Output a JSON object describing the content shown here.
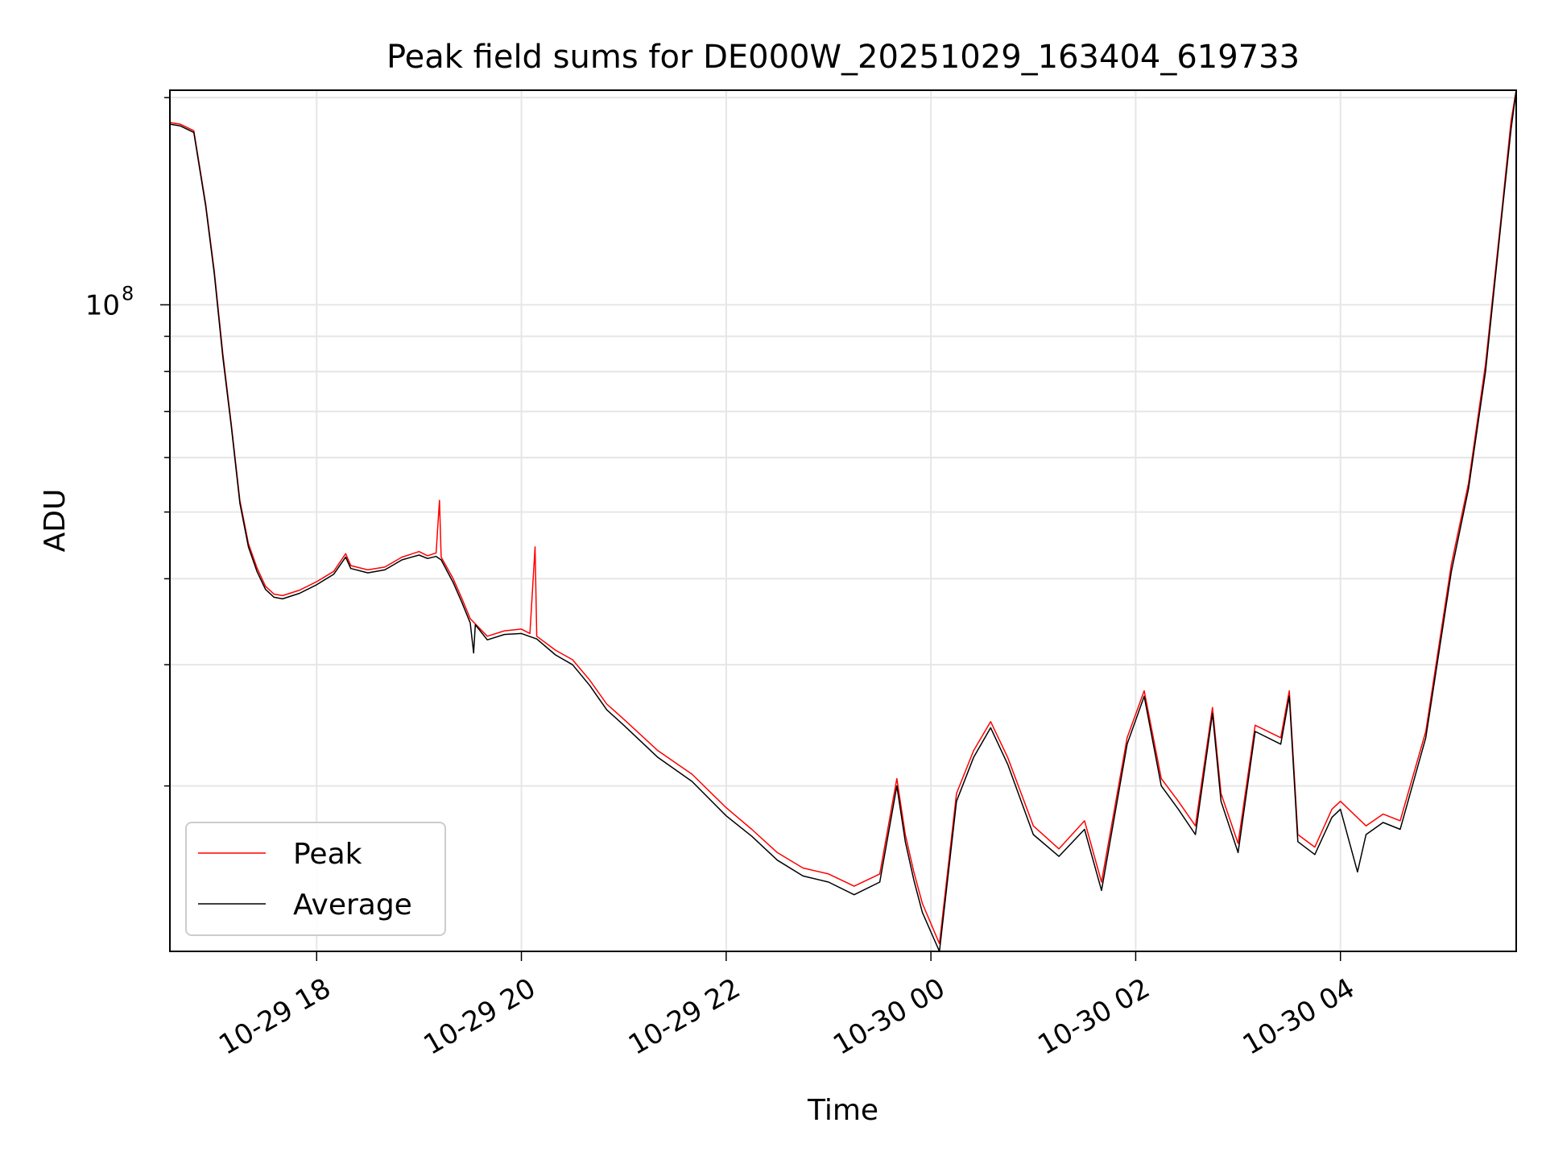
{
  "chart_data": {
    "type": "line",
    "title": "Peak field sums for DE000W_20251029_163404_619733",
    "xlabel": "Time",
    "ylabel": "ADU",
    "x_scale": "time",
    "y_scale": "log",
    "grid": true,
    "legend_position": "lower-left",
    "xlim": [
      "2025-10-29 16:34",
      "2025-10-30 05:43"
    ],
    "ylim": [
      11500000,
      205000000
    ],
    "x_ticks": [
      {
        "t": "2025-10-29 18:00",
        "label": "10-29 18"
      },
      {
        "t": "2025-10-29 20:00",
        "label": "10-29 20"
      },
      {
        "t": "2025-10-29 22:00",
        "label": "10-29 22"
      },
      {
        "t": "2025-10-30 00:00",
        "label": "10-30 00"
      },
      {
        "t": "2025-10-30 02:00",
        "label": "10-30 02"
      },
      {
        "t": "2025-10-30 04:00",
        "label": "10-30 04"
      }
    ],
    "y_ticks": [
      {
        "value": 100000000,
        "label": "10",
        "exp": "8"
      }
    ],
    "y_minor_ticks": [
      20000000,
      30000000,
      40000000,
      50000000,
      60000000,
      70000000,
      80000000,
      90000000,
      200000000
    ],
    "series": [
      {
        "name": "Peak",
        "color": "#ff0000",
        "points": [
          [
            "2025-10-29 16:34",
            184000000
          ],
          [
            "2025-10-29 16:40",
            183000000
          ],
          [
            "2025-10-29 16:48",
            179000000
          ],
          [
            "2025-10-29 16:55",
            140000000
          ],
          [
            "2025-10-29 17:00",
            112000000
          ],
          [
            "2025-10-29 17:05",
            85000000
          ],
          [
            "2025-10-29 17:10",
            67000000
          ],
          [
            "2025-10-29 17:15",
            52000000
          ],
          [
            "2025-10-29 17:20",
            45000000
          ],
          [
            "2025-10-29 17:25",
            41500000
          ],
          [
            "2025-10-29 17:30",
            39000000
          ],
          [
            "2025-10-29 17:35",
            38000000
          ],
          [
            "2025-10-29 17:40",
            37800000
          ],
          [
            "2025-10-29 17:50",
            38500000
          ],
          [
            "2025-10-29 18:00",
            39600000
          ],
          [
            "2025-10-29 18:10",
            41000000
          ],
          [
            "2025-10-29 18:17",
            43500000
          ],
          [
            "2025-10-29 18:20",
            41800000
          ],
          [
            "2025-10-29 18:30",
            41200000
          ],
          [
            "2025-10-29 18:40",
            41600000
          ],
          [
            "2025-10-29 18:50",
            43000000
          ],
          [
            "2025-10-29 19:00",
            43800000
          ],
          [
            "2025-10-29 19:05",
            43200000
          ],
          [
            "2025-10-29 19:10",
            43600000
          ],
          [
            "2025-10-29 19:12",
            52000000
          ],
          [
            "2025-10-29 19:13",
            43000000
          ],
          [
            "2025-10-29 19:20",
            40000000
          ],
          [
            "2025-10-29 19:25",
            37500000
          ],
          [
            "2025-10-29 19:30",
            35000000
          ],
          [
            "2025-10-29 19:40",
            33000000
          ],
          [
            "2025-10-29 19:50",
            33600000
          ],
          [
            "2025-10-29 20:00",
            33800000
          ],
          [
            "2025-10-29 20:05",
            33300000
          ],
          [
            "2025-10-29 20:08",
            44500000
          ],
          [
            "2025-10-29 20:09",
            33000000
          ],
          [
            "2025-10-29 20:20",
            31500000
          ],
          [
            "2025-10-29 20:30",
            30500000
          ],
          [
            "2025-10-29 20:40",
            28500000
          ],
          [
            "2025-10-29 20:50",
            26300000
          ],
          [
            "2025-10-29 21:00",
            25000000
          ],
          [
            "2025-10-29 21:20",
            22500000
          ],
          [
            "2025-10-29 21:40",
            20800000
          ],
          [
            "2025-10-29 22:00",
            18600000
          ],
          [
            "2025-10-29 22:15",
            17300000
          ],
          [
            "2025-10-29 22:30",
            16000000
          ],
          [
            "2025-10-29 22:45",
            15200000
          ],
          [
            "2025-10-29 23:00",
            14900000
          ],
          [
            "2025-10-29 23:15",
            14300000
          ],
          [
            "2025-10-29 23:30",
            14900000
          ],
          [
            "2025-10-29 23:40",
            20500000
          ],
          [
            "2025-10-29 23:45",
            17000000
          ],
          [
            "2025-10-29 23:50",
            15000000
          ],
          [
            "2025-10-29 23:55",
            13500000
          ],
          [
            "2025-10-30 00:05",
            11800000
          ],
          [
            "2025-10-30 00:15",
            19500000
          ],
          [
            "2025-10-30 00:25",
            22500000
          ],
          [
            "2025-10-30 00:35",
            24800000
          ],
          [
            "2025-10-30 00:45",
            22000000
          ],
          [
            "2025-10-30 01:00",
            17500000
          ],
          [
            "2025-10-30 01:15",
            16200000
          ],
          [
            "2025-10-30 01:30",
            17800000
          ],
          [
            "2025-10-30 01:40",
            14500000
          ],
          [
            "2025-10-30 01:55",
            23500000
          ],
          [
            "2025-10-30 02:05",
            27500000
          ],
          [
            "2025-10-30 02:15",
            20500000
          ],
          [
            "2025-10-30 02:25",
            19000000
          ],
          [
            "2025-10-30 02:35",
            17500000
          ],
          [
            "2025-10-30 02:45",
            26000000
          ],
          [
            "2025-10-30 02:50",
            19500000
          ],
          [
            "2025-10-30 03:00",
            16500000
          ],
          [
            "2025-10-30 03:10",
            24500000
          ],
          [
            "2025-10-30 03:25",
            23500000
          ],
          [
            "2025-10-30 03:30",
            27500000
          ],
          [
            "2025-10-30 03:35",
            17000000
          ],
          [
            "2025-10-30 03:45",
            16300000
          ],
          [
            "2025-10-30 03:55",
            18500000
          ],
          [
            "2025-10-30 04:00",
            19000000
          ],
          [
            "2025-10-30 04:15",
            17500000
          ],
          [
            "2025-10-30 04:25",
            18200000
          ],
          [
            "2025-10-30 04:35",
            17800000
          ],
          [
            "2025-10-30 04:50",
            24000000
          ],
          [
            "2025-10-30 05:05",
            42000000
          ],
          [
            "2025-10-30 05:15",
            55000000
          ],
          [
            "2025-10-30 05:25",
            82000000
          ],
          [
            "2025-10-30 05:35",
            140000000
          ],
          [
            "2025-10-30 05:40",
            185000000
          ],
          [
            "2025-10-30 05:43",
            205000000
          ]
        ]
      },
      {
        "name": "Average",
        "color": "#000000",
        "points": [
          [
            "2025-10-29 16:34",
            183000000
          ],
          [
            "2025-10-29 16:40",
            182000000
          ],
          [
            "2025-10-29 16:48",
            178000000
          ],
          [
            "2025-10-29 16:55",
            139000000
          ],
          [
            "2025-10-29 17:00",
            111000000
          ],
          [
            "2025-10-29 17:05",
            84000000
          ],
          [
            "2025-10-29 17:10",
            66500000
          ],
          [
            "2025-10-29 17:15",
            51500000
          ],
          [
            "2025-10-29 17:20",
            44500000
          ],
          [
            "2025-10-29 17:25",
            41000000
          ],
          [
            "2025-10-29 17:30",
            38600000
          ],
          [
            "2025-10-29 17:35",
            37600000
          ],
          [
            "2025-10-29 17:40",
            37400000
          ],
          [
            "2025-10-29 17:50",
            38100000
          ],
          [
            "2025-10-29 18:00",
            39200000
          ],
          [
            "2025-10-29 18:10",
            40600000
          ],
          [
            "2025-10-29 18:17",
            43000000
          ],
          [
            "2025-10-29 18:20",
            41400000
          ],
          [
            "2025-10-29 18:30",
            40800000
          ],
          [
            "2025-10-29 18:40",
            41200000
          ],
          [
            "2025-10-29 18:50",
            42600000
          ],
          [
            "2025-10-29 19:00",
            43300000
          ],
          [
            "2025-10-29 19:05",
            42800000
          ],
          [
            "2025-10-29 19:10",
            43100000
          ],
          [
            "2025-10-29 19:13",
            42600000
          ],
          [
            "2025-10-29 19:20",
            39500000
          ],
          [
            "2025-10-29 19:25",
            37000000
          ],
          [
            "2025-10-29 19:30",
            34500000
          ],
          [
            "2025-10-29 19:32",
            31200000
          ],
          [
            "2025-10-29 19:33",
            34300000
          ],
          [
            "2025-10-29 19:40",
            32600000
          ],
          [
            "2025-10-29 19:50",
            33200000
          ],
          [
            "2025-10-29 20:00",
            33300000
          ],
          [
            "2025-10-29 20:09",
            32700000
          ],
          [
            "2025-10-29 20:20",
            31000000
          ],
          [
            "2025-10-29 20:30",
            30000000
          ],
          [
            "2025-10-29 20:40",
            28000000
          ],
          [
            "2025-10-29 20:50",
            25800000
          ],
          [
            "2025-10-29 21:00",
            24500000
          ],
          [
            "2025-10-29 21:20",
            22000000
          ],
          [
            "2025-10-29 21:40",
            20300000
          ],
          [
            "2025-10-29 22:00",
            18100000
          ],
          [
            "2025-10-29 22:15",
            16900000
          ],
          [
            "2025-10-29 22:30",
            15600000
          ],
          [
            "2025-10-29 22:45",
            14800000
          ],
          [
            "2025-10-29 23:00",
            14500000
          ],
          [
            "2025-10-29 23:15",
            13900000
          ],
          [
            "2025-10-29 23:30",
            14500000
          ],
          [
            "2025-10-29 23:40",
            20000000
          ],
          [
            "2025-10-29 23:45",
            16600000
          ],
          [
            "2025-10-29 23:50",
            14600000
          ],
          [
            "2025-10-29 23:55",
            13100000
          ],
          [
            "2025-10-30 00:05",
            11500000
          ],
          [
            "2025-10-30 00:15",
            19000000
          ],
          [
            "2025-10-30 00:25",
            22000000
          ],
          [
            "2025-10-30 00:35",
            24300000
          ],
          [
            "2025-10-30 00:45",
            21500000
          ],
          [
            "2025-10-30 01:00",
            17000000
          ],
          [
            "2025-10-30 01:15",
            15800000
          ],
          [
            "2025-10-30 01:30",
            17300000
          ],
          [
            "2025-10-30 01:40",
            14100000
          ],
          [
            "2025-10-30 01:55",
            23000000
          ],
          [
            "2025-10-30 02:05",
            27000000
          ],
          [
            "2025-10-30 02:15",
            20000000
          ],
          [
            "2025-10-30 02:25",
            18500000
          ],
          [
            "2025-10-30 02:35",
            17000000
          ],
          [
            "2025-10-30 02:45",
            25500000
          ],
          [
            "2025-10-30 02:50",
            19000000
          ],
          [
            "2025-10-30 03:00",
            16000000
          ],
          [
            "2025-10-30 03:10",
            24000000
          ],
          [
            "2025-10-30 03:25",
            23000000
          ],
          [
            "2025-10-30 03:30",
            27000000
          ],
          [
            "2025-10-30 03:35",
            16600000
          ],
          [
            "2025-10-30 03:45",
            15900000
          ],
          [
            "2025-10-30 03:55",
            18000000
          ],
          [
            "2025-10-30 04:00",
            18500000
          ],
          [
            "2025-10-30 04:10",
            15000000
          ],
          [
            "2025-10-30 04:15",
            17000000
          ],
          [
            "2025-10-30 04:25",
            17700000
          ],
          [
            "2025-10-30 04:35",
            17300000
          ],
          [
            "2025-10-30 04:50",
            23500000
          ],
          [
            "2025-10-30 05:05",
            41000000
          ],
          [
            "2025-10-30 05:15",
            54000000
          ],
          [
            "2025-10-30 05:25",
            80000000
          ],
          [
            "2025-10-30 05:35",
            138000000
          ],
          [
            "2025-10-30 05:40",
            180000000
          ],
          [
            "2025-10-30 05:43",
            205000000
          ]
        ]
      }
    ]
  }
}
